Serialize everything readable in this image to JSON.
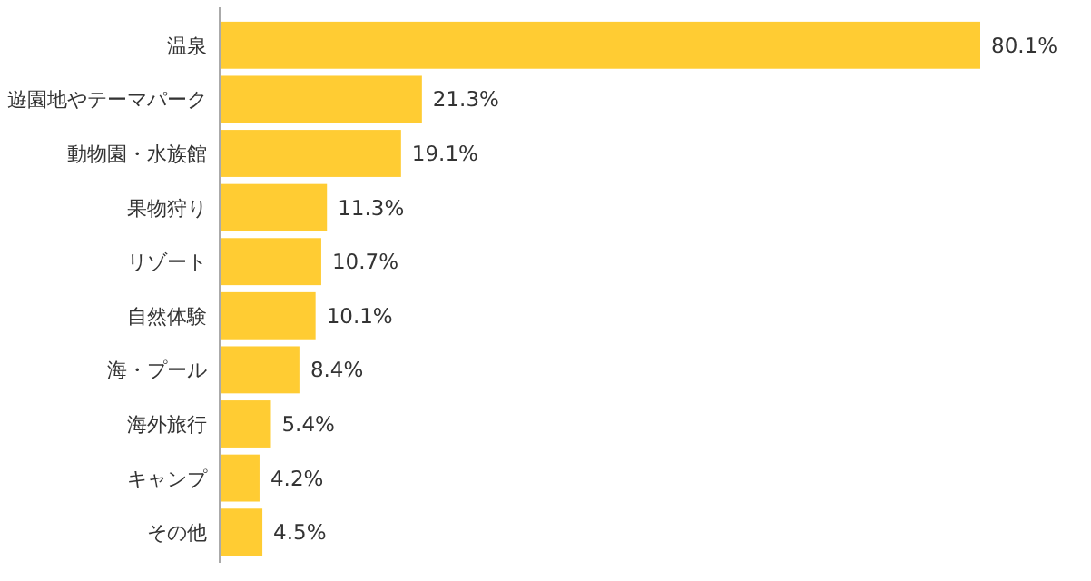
{
  "chart_data": {
    "type": "bar",
    "orientation": "horizontal",
    "categories": [
      "温泉",
      "遊園地やテーマパーク",
      "動物園・水族館",
      "果物狩り",
      "リゾート",
      "自然体験",
      "海・プール",
      "海外旅行",
      "キャンプ",
      "その他"
    ],
    "values": [
      80.1,
      21.3,
      19.1,
      11.3,
      10.7,
      10.1,
      8.4,
      5.4,
      4.2,
      4.5
    ],
    "value_labels": [
      "80.1%",
      "21.3%",
      "19.1%",
      "11.3%",
      "10.7%",
      "10.1%",
      "8.4%",
      "5.4%",
      "4.2%",
      "4.5%"
    ],
    "color": "#ffcc33"
  }
}
